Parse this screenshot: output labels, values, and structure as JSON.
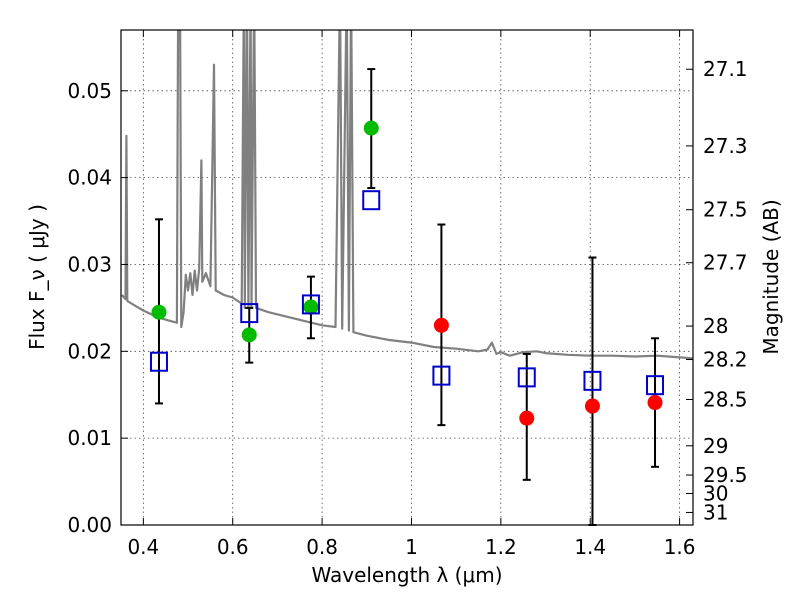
{
  "chart_data": {
    "type": "scatter",
    "title": "",
    "xlabel": "Wavelength  λ (μm)",
    "ylabel": "Flux  F_ν  ( μJy )",
    "y2label": "Magnitude (AB)",
    "xlim": [
      0.35,
      1.63
    ],
    "ylim": [
      0.0,
      0.057
    ],
    "grid": true,
    "x_ticks": [
      {
        "value": 0.4,
        "label": "0.4"
      },
      {
        "value": 0.6,
        "label": "0.6"
      },
      {
        "value": 0.8,
        "label": "0.8"
      },
      {
        "value": 1.0,
        "label": "1"
      },
      {
        "value": 1.2,
        "label": "1.2"
      },
      {
        "value": 1.4,
        "label": "1.4"
      },
      {
        "value": 1.6,
        "label": "1.6"
      }
    ],
    "y_ticks": [
      {
        "value": 0.0,
        "label": "0.00"
      },
      {
        "value": 0.01,
        "label": "0.01"
      },
      {
        "value": 0.02,
        "label": "0.02"
      },
      {
        "value": 0.03,
        "label": "0.03"
      },
      {
        "value": 0.04,
        "label": "0.04"
      },
      {
        "value": 0.05,
        "label": "0.05"
      }
    ],
    "mag_ticks": [
      {
        "mag": 27.1,
        "label": "27.1"
      },
      {
        "mag": 27.3,
        "label": "27.3"
      },
      {
        "mag": 27.5,
        "label": "27.5"
      },
      {
        "mag": 27.7,
        "label": "27.7"
      },
      {
        "mag": 28.0,
        "label": "28"
      },
      {
        "mag": 28.2,
        "label": "28.2"
      },
      {
        "mag": 28.5,
        "label": "28.5"
      },
      {
        "mag": 29.0,
        "label": "29"
      },
      {
        "mag": 29.5,
        "label": "29.5"
      },
      {
        "mag": 30.0,
        "label": "30"
      },
      {
        "mag": 31.0,
        "label": "31"
      }
    ],
    "series": [
      {
        "kind": "line",
        "color": "#808080",
        "points": [
          [
            0.352,
            0.0265
          ],
          [
            0.36,
            0.026
          ],
          [
            0.362,
            0.0448
          ],
          [
            0.364,
            0.0258
          ],
          [
            0.38,
            0.0253
          ],
          [
            0.4,
            0.0247
          ],
          [
            0.42,
            0.0242
          ],
          [
            0.44,
            0.0238
          ],
          [
            0.46,
            0.0235
          ],
          [
            0.475,
            0.0233
          ],
          [
            0.478,
            0.062
          ],
          [
            0.482,
            0.062
          ],
          [
            0.485,
            0.0228
          ],
          [
            0.49,
            0.0245
          ],
          [
            0.495,
            0.0288
          ],
          [
            0.5,
            0.027
          ],
          [
            0.505,
            0.029
          ],
          [
            0.51,
            0.0265
          ],
          [
            0.515,
            0.0293
          ],
          [
            0.52,
            0.027
          ],
          [
            0.525,
            0.0295
          ],
          [
            0.53,
            0.042
          ],
          [
            0.532,
            0.028
          ],
          [
            0.54,
            0.029
          ],
          [
            0.55,
            0.0275
          ],
          [
            0.558,
            0.053
          ],
          [
            0.562,
            0.027
          ],
          [
            0.58,
            0.0265
          ],
          [
            0.6,
            0.0262
          ],
          [
            0.62,
            0.0255
          ],
          [
            0.625,
            0.062
          ],
          [
            0.627,
            0.025
          ],
          [
            0.632,
            0.062
          ],
          [
            0.635,
            0.025
          ],
          [
            0.64,
            0.062
          ],
          [
            0.642,
            0.0252
          ],
          [
            0.648,
            0.062
          ],
          [
            0.652,
            0.025
          ],
          [
            0.68,
            0.0245
          ],
          [
            0.72,
            0.024
          ],
          [
            0.76,
            0.0235
          ],
          [
            0.8,
            0.023
          ],
          [
            0.83,
            0.0228
          ],
          [
            0.84,
            0.062
          ],
          [
            0.845,
            0.0226
          ],
          [
            0.855,
            0.062
          ],
          [
            0.86,
            0.0224
          ],
          [
            0.865,
            0.062
          ],
          [
            0.87,
            0.0222
          ],
          [
            0.9,
            0.0218
          ],
          [
            0.95,
            0.0213
          ],
          [
            1.0,
            0.021
          ],
          [
            1.05,
            0.0205
          ],
          [
            1.1,
            0.0203
          ],
          [
            1.15,
            0.02
          ],
          [
            1.17,
            0.0202
          ],
          [
            1.18,
            0.021
          ],
          [
            1.19,
            0.0197
          ],
          [
            1.2,
            0.0199
          ],
          [
            1.22,
            0.0195
          ],
          [
            1.25,
            0.0199
          ],
          [
            1.28,
            0.02
          ],
          [
            1.3,
            0.0198
          ],
          [
            1.35,
            0.0196
          ],
          [
            1.4,
            0.0195
          ],
          [
            1.45,
            0.0195
          ],
          [
            1.5,
            0.0194
          ],
          [
            1.55,
            0.0195
          ],
          [
            1.6,
            0.0193
          ],
          [
            1.63,
            0.0192
          ]
        ]
      },
      {
        "kind": "markers",
        "marker": "circle",
        "color": "#00bb00",
        "points": [
          {
            "x": 0.435,
            "y": 0.0245,
            "yerr": [
              0.014,
              0.0352
            ]
          },
          {
            "x": 0.637,
            "y": 0.0219,
            "yerr": [
              0.0187,
              0.025
            ]
          },
          {
            "x": 0.775,
            "y": 0.0251,
            "yerr": [
              0.0215,
              0.0286
            ]
          },
          {
            "x": 0.91,
            "y": 0.0457,
            "yerr": [
              0.0388,
              0.0525
            ]
          }
        ]
      },
      {
        "kind": "markers",
        "marker": "circle",
        "color": "#ff0000",
        "points": [
          {
            "x": 1.067,
            "y": 0.023,
            "yerr": [
              0.0115,
              0.0346
            ]
          },
          {
            "x": 1.258,
            "y": 0.0123,
            "yerr": [
              0.0052,
              0.0197
            ]
          },
          {
            "x": 1.405,
            "y": 0.0137,
            "yerr": [
              0.0,
              0.0308
            ]
          },
          {
            "x": 1.545,
            "y": 0.0141,
            "yerr": [
              0.0067,
              0.0215
            ]
          }
        ]
      },
      {
        "kind": "markers",
        "marker": "open-square",
        "color": "#0000cc",
        "points": [
          {
            "x": 0.435,
            "y": 0.0188
          },
          {
            "x": 0.637,
            "y": 0.0244
          },
          {
            "x": 0.775,
            "y": 0.0254
          },
          {
            "x": 0.91,
            "y": 0.0374
          },
          {
            "x": 1.067,
            "y": 0.0172
          },
          {
            "x": 1.258,
            "y": 0.017
          },
          {
            "x": 1.405,
            "y": 0.0166
          },
          {
            "x": 1.545,
            "y": 0.0161
          }
        ]
      }
    ]
  }
}
